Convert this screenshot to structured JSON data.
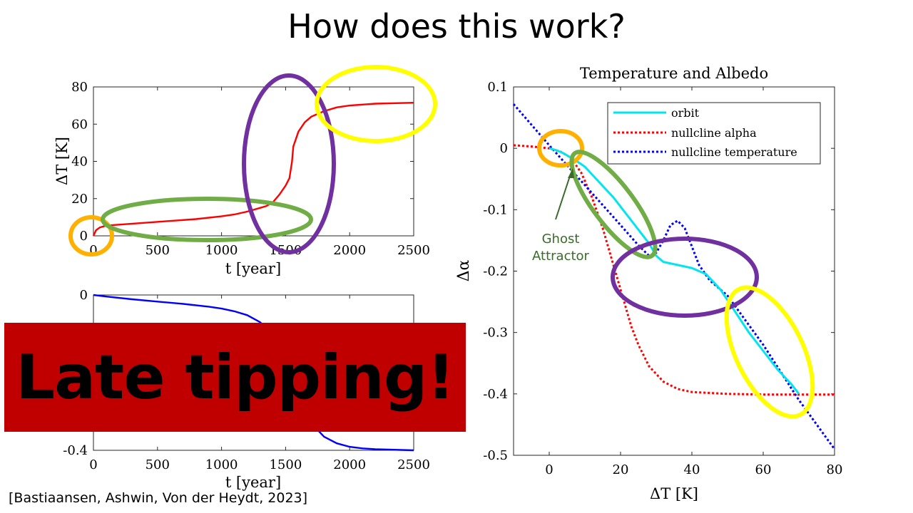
{
  "slide": {
    "title": "How does this work?",
    "banner": "Late tipping!",
    "citation": "[Bastiaansen, Ashwin, Von der Heydt, 2023]",
    "ghost_label": "Ghost Attractor"
  },
  "colors": {
    "red": "#ff0000",
    "blue": "#0000ff",
    "cyan": "#00e5ee",
    "orange": "#ffb000",
    "green": "#70ad47",
    "purple": "#7030a0",
    "yellow": "#ffff00",
    "banner": "#c00000"
  },
  "chart_data": [
    {
      "type": "line",
      "title": "",
      "xlabel": "t [year]",
      "ylabel": "ΔT [K]",
      "xlim": [
        0,
        2500
      ],
      "ylim": [
        0,
        80
      ],
      "xticks": [
        0,
        500,
        1000,
        1500,
        2000,
        2500
      ],
      "yticks": [
        0,
        20,
        40,
        60,
        80
      ],
      "series": [
        {
          "color": "#ff0000",
          "x": [
            0,
            20,
            50,
            100,
            200,
            400,
            600,
            800,
            1000,
            1100,
            1200,
            1300,
            1350,
            1400,
            1450,
            1500,
            1530,
            1550,
            1560,
            1580,
            1600,
            1650,
            1700,
            1800,
            1900,
            2000,
            2200,
            2500
          ],
          "y": [
            0,
            3,
            4.5,
            5.5,
            6,
            7,
            8,
            9,
            10.5,
            11.5,
            13,
            15,
            16,
            18,
            22,
            27,
            31,
            40,
            48,
            52,
            56,
            61,
            64,
            67,
            69,
            70,
            71,
            71.5
          ]
        }
      ]
    },
    {
      "type": "line",
      "title": "",
      "xlabel": "t [year]",
      "ylabel": "",
      "xlim": [
        0,
        2500
      ],
      "ylim": [
        -0.4,
        0
      ],
      "xticks": [
        0,
        500,
        1000,
        1500,
        2000,
        2500
      ],
      "yticks": [
        0,
        -0.4
      ],
      "series": [
        {
          "color": "#0000ff",
          "x": [
            0,
            100,
            300,
            500,
            700,
            900,
            1000,
            1100,
            1200,
            1300,
            1400,
            1500,
            1600,
            1700,
            1800,
            1900,
            2000,
            2100,
            2200,
            2300,
            2400,
            2500
          ],
          "y": [
            0,
            -0.004,
            -0.011,
            -0.017,
            -0.023,
            -0.03,
            -0.035,
            -0.042,
            -0.052,
            -0.07,
            -0.1,
            -0.18,
            -0.27,
            -0.33,
            -0.365,
            -0.382,
            -0.391,
            -0.395,
            -0.397,
            -0.398,
            -0.399,
            -0.4
          ]
        }
      ]
    },
    {
      "type": "line",
      "title": "Temperature and Albedo",
      "xlabel": "ΔT [K]",
      "ylabel": "Δα",
      "xlim": [
        -10,
        80
      ],
      "ylim": [
        -0.5,
        0.1
      ],
      "xticks": [
        0,
        20,
        40,
        60,
        80
      ],
      "yticks": [
        0.1,
        0,
        -0.1,
        -0.2,
        -0.3,
        -0.4,
        -0.5
      ],
      "legend": "top-right",
      "series": [
        {
          "name": "orbit",
          "color": "#00e5ee",
          "style": "solid",
          "x": [
            0,
            2,
            4,
            6,
            8,
            10,
            14,
            18,
            22,
            26,
            28,
            30,
            32,
            36,
            40,
            44,
            48,
            52,
            56,
            60,
            64,
            68,
            70
          ],
          "y": [
            0,
            -0.003,
            -0.008,
            -0.015,
            -0.022,
            -0.03,
            -0.055,
            -0.08,
            -0.11,
            -0.14,
            -0.155,
            -0.175,
            -0.185,
            -0.19,
            -0.195,
            -0.205,
            -0.23,
            -0.265,
            -0.3,
            -0.33,
            -0.36,
            -0.385,
            -0.4
          ]
        },
        {
          "name": "nullcline alpha",
          "color": "#ff0000",
          "style": "dotted",
          "x": [
            -10,
            -5,
            0,
            3,
            6,
            9,
            12,
            15,
            17,
            19,
            21,
            23,
            25,
            28,
            32,
            36,
            40,
            50,
            60,
            70,
            80
          ],
          "y": [
            0.005,
            0.003,
            0.0,
            -0.005,
            -0.015,
            -0.04,
            -0.08,
            -0.13,
            -0.17,
            -0.21,
            -0.25,
            -0.29,
            -0.32,
            -0.355,
            -0.38,
            -0.392,
            -0.397,
            -0.4,
            -0.401,
            -0.401,
            -0.401
          ]
        },
        {
          "name": "nullcline temperature",
          "color": "#0000ff",
          "style": "dotted",
          "x": [
            -10,
            0,
            10,
            20,
            25,
            28,
            30,
            32,
            34,
            36,
            38,
            40,
            42,
            45,
            50,
            60,
            70,
            80
          ],
          "y": [
            0.072,
            0.005,
            -0.06,
            -0.125,
            -0.158,
            -0.175,
            -0.17,
            -0.15,
            -0.125,
            -0.118,
            -0.13,
            -0.16,
            -0.19,
            -0.215,
            -0.24,
            -0.32,
            -0.41,
            -0.49
          ]
        }
      ]
    }
  ]
}
